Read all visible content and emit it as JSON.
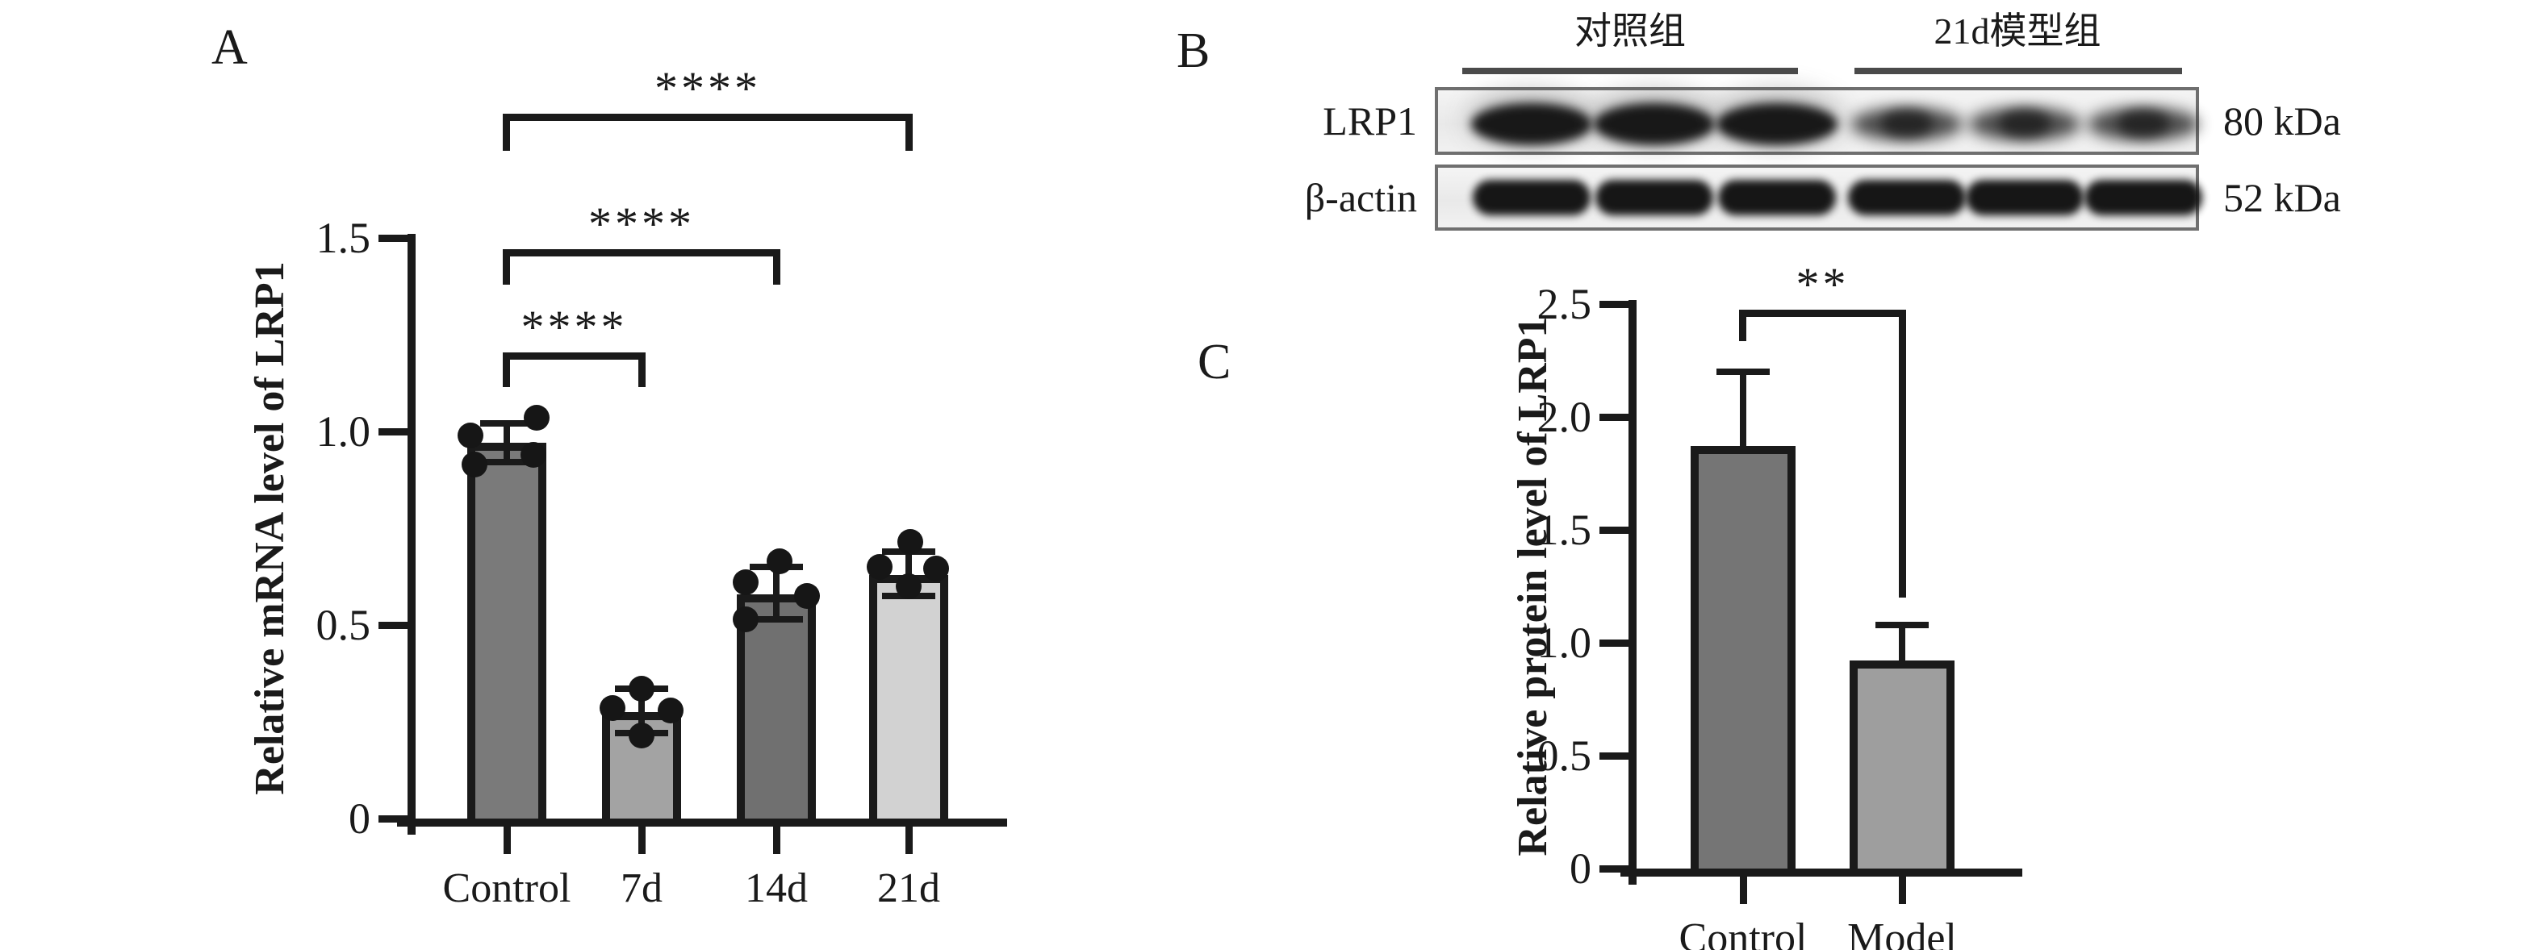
{
  "colors": {
    "ink": "#1a1a1a",
    "group_underline": "#4a4a4a",
    "blot_border": "#6f6f6f",
    "blot_background": "#efefef",
    "band_strong": "#101010",
    "band_weak": "#262626"
  },
  "panel_a": {
    "letter": "A"
  },
  "panel_b": {
    "letter": "B",
    "group_labels": [
      "对照组",
      "21d模型组"
    ],
    "rows": [
      {
        "protein": "LRP1",
        "mw": "80 kDa",
        "lanes": [
          "strong",
          "strong",
          "strong",
          "weak",
          "weak",
          "weak"
        ]
      },
      {
        "protein": "β-actin",
        "mw": "52 kDa",
        "lanes": [
          "strong",
          "strong",
          "strong",
          "strong",
          "strong",
          "strong"
        ]
      }
    ]
  },
  "panel_c": {
    "letter": "C"
  },
  "chart_data": [
    {
      "id": "A",
      "type": "bar",
      "title": "",
      "xlabel": "",
      "ylabel": "Relative mRNA level of LRP1",
      "categories": [
        "Control",
        "7d",
        "14d",
        "21d"
      ],
      "values": [
        0.97,
        0.275,
        0.58,
        0.63
      ],
      "errors_low": [
        0.92,
        0.22,
        0.515,
        0.575
      ],
      "errors_high": [
        1.02,
        0.335,
        0.65,
        0.69
      ],
      "bar_colors": [
        "#7a7a7a",
        "#a3a3a3",
        "#707070",
        "#d2d2d2"
      ],
      "dots": [
        [
          [
            -45,
            0.99
          ],
          [
            37,
            1.035
          ],
          [
            -40,
            0.915
          ],
          [
            33,
            0.94
          ]
        ],
        [
          [
            0,
            0.335
          ],
          [
            -36,
            0.285
          ],
          [
            36,
            0.28
          ],
          [
            0,
            0.215
          ]
        ],
        [
          [
            4,
            0.665
          ],
          [
            -38,
            0.61
          ],
          [
            38,
            0.575
          ],
          [
            -38,
            0.515
          ]
        ],
        [
          [
            2,
            0.715
          ],
          [
            -36,
            0.65
          ],
          [
            34,
            0.645
          ],
          [
            0,
            0.6
          ]
        ]
      ],
      "ylim": [
        0,
        1.5
      ],
      "yticks": [
        {
          "v": 0,
          "label": "0"
        },
        {
          "v": 0.5,
          "label": "0.5"
        },
        {
          "v": 1.0,
          "label": "1.0"
        },
        {
          "v": 1.5,
          "label": "1.5"
        }
      ],
      "grid": false,
      "legend": null,
      "brackets": [
        {
          "i1": 0,
          "i2": 1,
          "y": 1.204,
          "leg1": 1.115,
          "leg2": 1.115,
          "label": "****"
        },
        {
          "i1": 0,
          "i2": 2,
          "y": 1.47,
          "leg1": 1.38,
          "leg2": 1.38,
          "label": "****"
        },
        {
          "i1": 0,
          "i2": 3,
          "y": 1.82,
          "leg1": 1.725,
          "leg2": 1.725,
          "label": "****"
        }
      ]
    },
    {
      "id": "C",
      "type": "bar",
      "title": "",
      "xlabel": "",
      "ylabel": "Relative protein level of LRP1",
      "categories": [
        "Control",
        "Model"
      ],
      "values": [
        1.87,
        0.92
      ],
      "errors_low": [
        null,
        null
      ],
      "errors_high": [
        2.2,
        1.08
      ],
      "bar_colors": [
        "#757575",
        "#9e9e9e"
      ],
      "dots": [
        [],
        []
      ],
      "ylim": [
        0,
        2.5
      ],
      "yticks": [
        {
          "v": 0,
          "label": "0"
        },
        {
          "v": 0.5,
          "label": "0.5"
        },
        {
          "v": 1.0,
          "label": "1.0"
        },
        {
          "v": 1.5,
          "label": "1.5"
        },
        {
          "v": 2.0,
          "label": "2.0"
        },
        {
          "v": 2.5,
          "label": "2.5"
        }
      ],
      "grid": false,
      "legend": null,
      "brackets": [
        {
          "i1": 0,
          "i2": 1,
          "y": 2.475,
          "leg1": 2.335,
          "leg2": 1.2,
          "label": "**"
        }
      ]
    }
  ]
}
